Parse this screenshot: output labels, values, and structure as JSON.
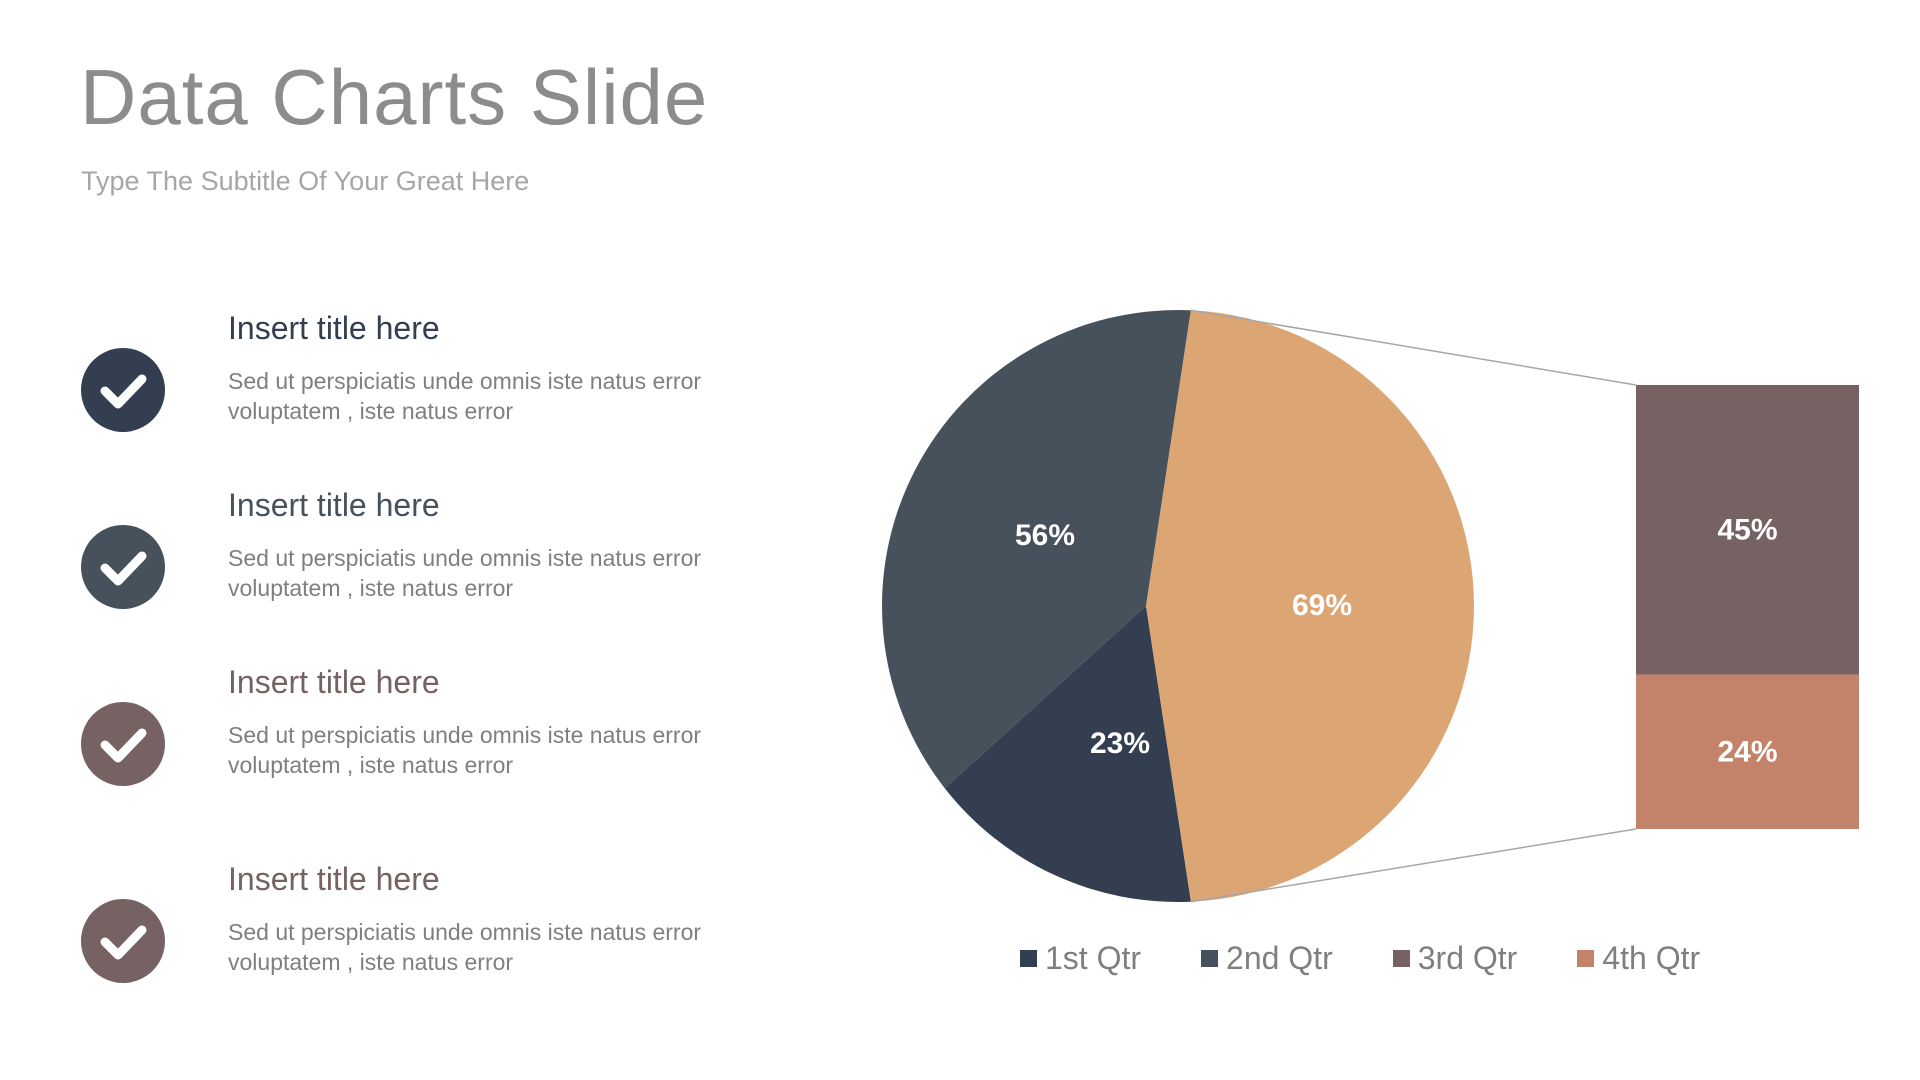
{
  "slide": {
    "title": "Data Charts Slide",
    "subtitle": "Type The Subtitle Of Your Great Here"
  },
  "items": [
    {
      "title": "Insert title here",
      "desc_line1": "Sed ut perspiciatis unde omnis iste natus error",
      "desc_line2": "voluptatem , iste natus error",
      "color": "#333f50",
      "icon": "check-icon"
    },
    {
      "title": "Insert title here",
      "desc_line1": "Sed ut perspiciatis unde omnis iste natus error",
      "desc_line2": "voluptatem , iste natus error",
      "color": "#46515c",
      "icon": "check-icon"
    },
    {
      "title": "Insert title here",
      "desc_line1": "Sed ut perspiciatis unde omnis iste natus error",
      "desc_line2": "voluptatem , iste natus error",
      "color": "#766263",
      "icon": "check-icon"
    },
    {
      "title": "Insert title here",
      "desc_line1": "Sed ut perspiciatis unde omnis iste natus error",
      "desc_line2": "voluptatem , iste natus error",
      "color": "#766263",
      "icon": "check-icon"
    }
  ],
  "chart_data": {
    "type": "pie",
    "subtype": "bar-of-pie",
    "pie": {
      "slices": [
        {
          "label": "56%",
          "value": 56,
          "color": "#46515c"
        },
        {
          "label": "23%",
          "value": 23,
          "color": "#333f50"
        },
        {
          "label": "69%",
          "value": 69,
          "color": "#dca574"
        }
      ]
    },
    "bar": {
      "segments": [
        {
          "label": "45%",
          "value": 45,
          "color": "#766263"
        },
        {
          "label": "24%",
          "value": 24,
          "color": "#c3836a"
        }
      ]
    },
    "legend": [
      {
        "label": "1st Qtr",
        "color": "#333f50"
      },
      {
        "label": "2nd Qtr",
        "color": "#46515c"
      },
      {
        "label": "3rd Qtr",
        "color": "#766263"
      },
      {
        "label": "4th Qtr",
        "color": "#c3836a"
      }
    ],
    "legend_position": "bottom"
  }
}
